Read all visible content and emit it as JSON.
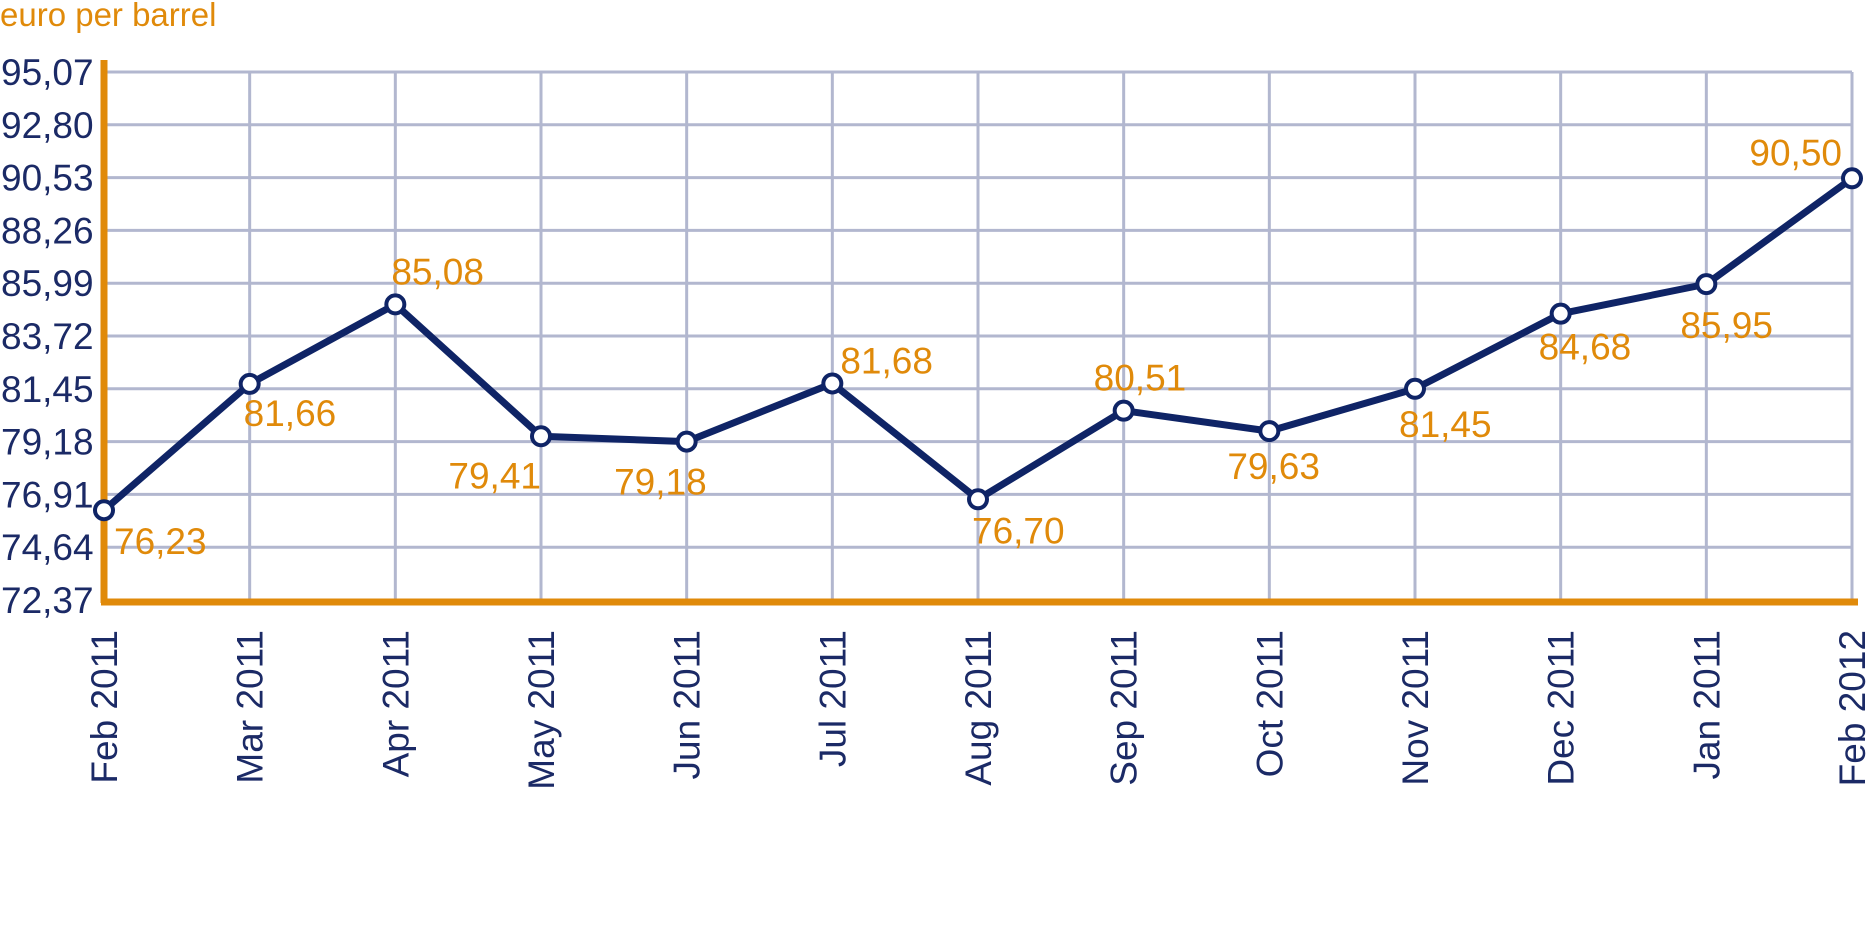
{
  "chart_data": {
    "type": "line",
    "title": "",
    "ylabel": "euro per barrel",
    "xlabel": "",
    "ylim": [
      72.37,
      95.07
    ],
    "yticks": [
      "72,37",
      "74,64",
      "76,91",
      "79,18",
      "81,45",
      "83,72",
      "85,99",
      "88,26",
      "90,53",
      "92,80",
      "95,07"
    ],
    "categories": [
      "Feb 2011",
      "Mar 2011",
      "Apr 2011",
      "May 2011",
      "Jun 2011",
      "Jul 2011",
      "Aug 2011",
      "Sep 2011",
      "Oct 2011",
      "Nov 2011",
      "Dec 2011",
      "Jan 2011",
      "Feb 2012"
    ],
    "values": [
      76.23,
      81.66,
      85.08,
      79.41,
      79.18,
      81.68,
      76.7,
      80.51,
      79.63,
      81.45,
      84.68,
      85.95,
      90.5
    ],
    "data_labels": [
      "76,23",
      "81,66",
      "85,08",
      "79,41",
      "79,18",
      "81,68",
      "76,70",
      "80,51",
      "79,63",
      "81,45",
      "84,68",
      "85,95",
      "90,50"
    ],
    "grid": true,
    "colors": {
      "line": "#0f2466",
      "axis": "#e08a0a",
      "grid": "#b2b7cf",
      "labels": "#e08a0a",
      "ticks": "#1b2a66"
    }
  }
}
